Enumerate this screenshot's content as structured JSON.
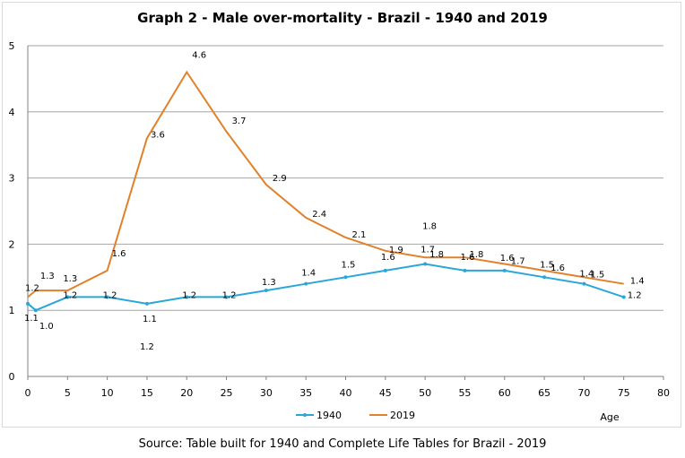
{
  "chart_data": {
    "type": "line",
    "title": "Graph 2 - Male over-mortality - Brazil - 1940 and 2019",
    "xlabel": "Age",
    "ylabel": "",
    "xlim": [
      0,
      80
    ],
    "ylim": [
      0,
      5
    ],
    "x_ticks": [
      "0",
      "5",
      "10",
      "15",
      "20",
      "25",
      "30",
      "35",
      "40",
      "45",
      "50",
      "55",
      "60",
      "65",
      "70",
      "75",
      "80"
    ],
    "y_ticks": [
      "0",
      "1",
      "2",
      "3",
      "4",
      "5"
    ],
    "grid": "horizontal",
    "legend_position": "bottom",
    "series": [
      {
        "name": "1940",
        "color": "#2aa7d8",
        "marker": "dot",
        "x": [
          0,
          1,
          5,
          10,
          15,
          20,
          25,
          30,
          35,
          40,
          45,
          50,
          55,
          60,
          65,
          70,
          75
        ],
        "values": [
          1.1,
          1.0,
          1.2,
          1.2,
          1.1,
          1.2,
          1.2,
          1.3,
          1.4,
          1.5,
          1.6,
          1.7,
          1.6,
          1.6,
          1.5,
          1.4,
          1.2
        ],
        "labels": [
          "1.1",
          "1.0",
          "1.2",
          "1.2",
          "1.1",
          "1.2",
          "1.2",
          "1.3",
          "1.4",
          "1.5",
          "1.6",
          "1.7",
          "1.6",
          "1.6",
          "1.5",
          "1.4",
          "1.2"
        ]
      },
      {
        "name": "2019",
        "color": "#e2812b",
        "marker": "none",
        "x": [
          0,
          1,
          5,
          10,
          15,
          20,
          25,
          30,
          35,
          40,
          45,
          50,
          55,
          60,
          65,
          70,
          75
        ],
        "values": [
          1.2,
          1.3,
          1.3,
          1.6,
          3.6,
          4.6,
          3.7,
          2.9,
          2.4,
          2.1,
          1.9,
          1.8,
          1.8,
          1.7,
          1.6,
          1.5,
          1.4
        ],
        "labels": [
          "1.2",
          "1.3",
          "1.3",
          "1.6",
          "3.6",
          "4.6",
          "3.7",
          "2.9",
          "2.4",
          "2.1",
          "1.9",
          "1.8",
          "1.8",
          "1.7",
          "1.6",
          "1.5",
          "1.4"
        ]
      }
    ],
    "extra_labels": [
      "1.2",
      "1.8"
    ]
  },
  "source": "Source: Table built for 1940 and Complete Life Tables for Brazil - 2019"
}
